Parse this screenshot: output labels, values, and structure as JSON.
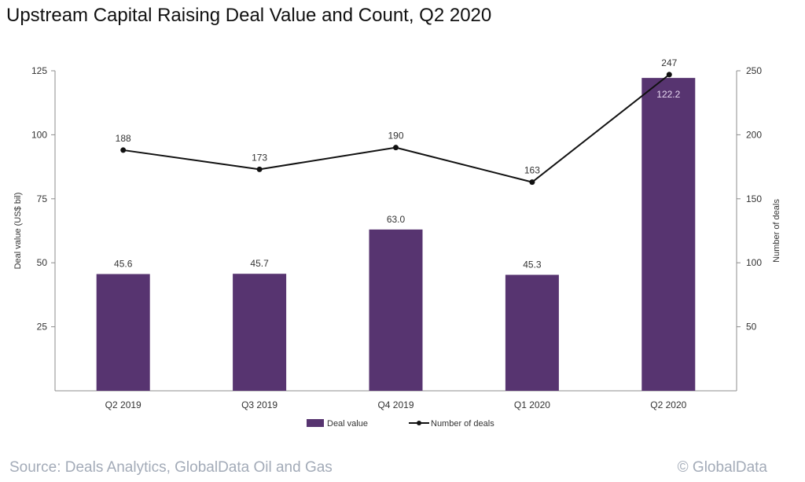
{
  "title": "Upstream Capital Raising Deal Value and Count, Q2 2020",
  "footer": {
    "source": "Source: Deals Analytics, GlobalData Oil and Gas",
    "copyright": "© GlobalData"
  },
  "chart_data": {
    "type": "bar+line",
    "title": "Upstream Capital Raising Deal Value and Count, Q2 2020",
    "categories": [
      "Q2 2019",
      "Q3 2019",
      "Q4 2019",
      "Q1 2020",
      "Q2 2020"
    ],
    "series": [
      {
        "name": "Deal value",
        "type": "bar",
        "axis": "left",
        "values": [
          45.6,
          45.7,
          63.0,
          45.3,
          122.2
        ],
        "labels": [
          "45.6",
          "45.7",
          "63.0",
          "45.3",
          "122.2"
        ],
        "color": "#573470"
      },
      {
        "name": "Number of deals",
        "type": "line",
        "axis": "right",
        "values": [
          188,
          173,
          190,
          163,
          247
        ],
        "labels": [
          "188",
          "173",
          "190",
          "163",
          "247"
        ],
        "color": "#111111"
      }
    ],
    "ylabel": "Deal value (US$ bil)",
    "ylim": [
      0,
      125
    ],
    "yticks": [
      "25",
      "50",
      "75",
      "100",
      "125"
    ],
    "y2label": "Number of deals",
    "y2lim": [
      0,
      250
    ],
    "y2ticks": [
      "50",
      "100",
      "150",
      "200",
      "250"
    ],
    "grid": false,
    "legend": "bottom"
  }
}
